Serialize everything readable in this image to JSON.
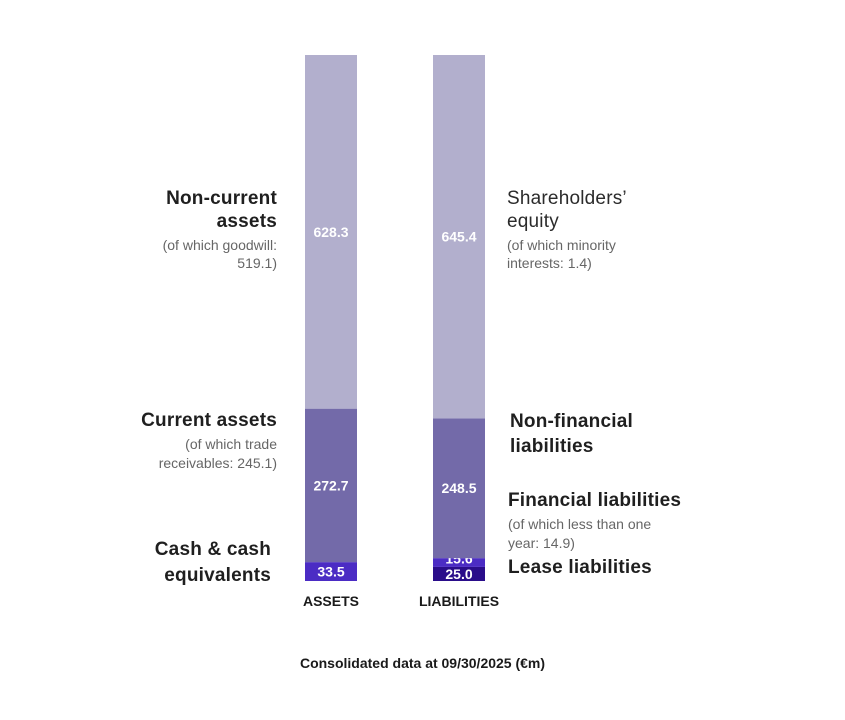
{
  "chart_data": {
    "type": "bar",
    "stacked": true,
    "categories": [
      "ASSETS",
      "LIABILITIES"
    ],
    "segments": {
      "ASSETS": [
        {
          "key": "cash",
          "value": 33.5,
          "label": "33.5",
          "color": "#4b2cc4"
        },
        {
          "key": "current",
          "value": 272.7,
          "label": "272.7",
          "color": "#736aa9"
        },
        {
          "key": "noncurrent",
          "value": 628.3,
          "label": "628.3",
          "color": "#b2afcd"
        }
      ],
      "LIABILITIES": [
        {
          "key": "lease",
          "value": 25.0,
          "label": "25.0",
          "color": "#2a0d8a"
        },
        {
          "key": "financial",
          "value": 15.6,
          "label": "15.6",
          "color": "#4b2cc4"
        },
        {
          "key": "nonfinancial",
          "value": 248.5,
          "label": "248.5",
          "color": "#736aa9"
        },
        {
          "key": "equity",
          "value": 645.4,
          "label": "645.4",
          "color": "#b2afcd"
        }
      ]
    },
    "footnote": "Consolidated data at 09/30/2025 (€m)"
  },
  "labels": {
    "noncurrent_title_1": "Non-current",
    "noncurrent_title_2": "assets",
    "noncurrent_sub_1": "(of which goodwill:",
    "noncurrent_sub_2": "519.1)",
    "current_title": "Current assets",
    "current_sub_1": "(of which trade",
    "current_sub_2": "receivables: 245.1)",
    "cash_title_1": "Cash & cash",
    "cash_title_2": "equivalents",
    "equity_title_1": "Shareholders’",
    "equity_title_2": "equity",
    "equity_sub_1": "(of which minority",
    "equity_sub_2": "interests: 1.4)",
    "nonfin_title_1": "Non-financial",
    "nonfin_title_2": "liabilities",
    "fin_title": "Financial liabilities",
    "fin_sub_1": "(of which less than one",
    "fin_sub_2": "year: 14.9)",
    "lease_title": "Lease liabilities"
  }
}
